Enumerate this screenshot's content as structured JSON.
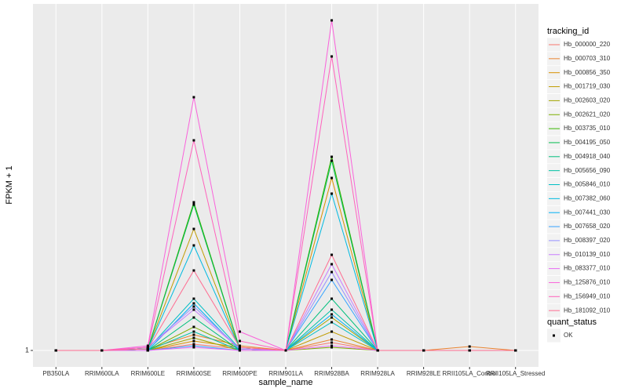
{
  "chart_data": {
    "type": "line",
    "xlabel": "sample_name",
    "ylabel": "FPKM + 1",
    "categories": [
      "PB350LA",
      "RRIM600LA",
      "RRIM600LE",
      "RRIM600SE",
      "RRIM600PE",
      "RRIM901LA",
      "RRIM928BA",
      "RRIM928LA",
      "RRIM928LE",
      "RRII105LA_Control",
      "RRII105LA_Stressed"
    ],
    "ylim": [
      -0.05,
      23.1
    ],
    "yticks": [
      1
    ],
    "grid": true,
    "legend_title": "tracking_id",
    "point_legend_title": "quant_status",
    "point_legend_label": "OK",
    "point_color": "#000000",
    "series": [
      {
        "name": "Hb_000000_220",
        "color": "#F8766D",
        "values": [
          1,
          1,
          1,
          1.4,
          1.1,
          1,
          1.5,
          1,
          1,
          1,
          1
        ]
      },
      {
        "name": "Hb_000703_310",
        "color": "#EA8331",
        "values": [
          1,
          1,
          1.1,
          2.0,
          1.3,
          1,
          1.7,
          1,
          1,
          1.25,
          1
        ]
      },
      {
        "name": "Hb_000856_350",
        "color": "#D89000",
        "values": [
          1,
          1,
          1,
          1.6,
          1.2,
          1,
          12.0,
          1,
          1,
          1,
          1
        ]
      },
      {
        "name": "Hb_001719_030",
        "color": "#C09B00",
        "values": [
          1,
          1,
          1.1,
          8.75,
          1.1,
          1,
          2.2,
          1,
          1,
          1,
          1
        ]
      },
      {
        "name": "Hb_002603_020",
        "color": "#A3A500",
        "values": [
          1,
          1,
          1,
          1.8,
          1,
          1,
          3.1,
          1,
          1,
          1,
          1
        ]
      },
      {
        "name": "Hb_002621_020",
        "color": "#7CAE00",
        "values": [
          1,
          1,
          1,
          2.5,
          1.1,
          1,
          1.2,
          1,
          1,
          1,
          1
        ]
      },
      {
        "name": "Hb_003735_010",
        "color": "#39B600",
        "values": [
          1,
          1,
          1.1,
          10.45,
          1.1,
          1,
          13.35,
          1,
          1,
          1,
          1
        ]
      },
      {
        "name": "Hb_004195_050",
        "color": "#00BB4E",
        "values": [
          1,
          1,
          1.1,
          10.3,
          1.1,
          1,
          13.1,
          1,
          1,
          1,
          1
        ]
      },
      {
        "name": "Hb_004918_040",
        "color": "#00BF7D",
        "values": [
          1,
          1,
          1,
          3.1,
          1,
          1,
          4.3,
          1,
          1,
          1,
          1
        ]
      },
      {
        "name": "Hb_005656_090",
        "color": "#00C1A3",
        "values": [
          1,
          1,
          1,
          2.2,
          1,
          1,
          3.6,
          1,
          1,
          1,
          1
        ]
      },
      {
        "name": "Hb_005846_010",
        "color": "#00BFC4",
        "values": [
          1,
          1,
          1.1,
          4.3,
          1.1,
          1,
          2.8,
          1,
          1,
          1,
          1
        ]
      },
      {
        "name": "Hb_007382_060",
        "color": "#00BAE0",
        "values": [
          1,
          1,
          1.1,
          7.7,
          1.1,
          1,
          11.0,
          1,
          1,
          1,
          1
        ]
      },
      {
        "name": "Hb_007441_030",
        "color": "#00B0F6",
        "values": [
          1,
          1,
          1,
          4.0,
          1,
          1,
          3.3,
          1,
          1,
          1,
          1
        ]
      },
      {
        "name": "Hb_007658_020",
        "color": "#35A2FF",
        "values": [
          1,
          1,
          1,
          1.3,
          1,
          1,
          5.5,
          1,
          1,
          1,
          1
        ]
      },
      {
        "name": "Hb_008397_020",
        "color": "#9590FF",
        "values": [
          1,
          1,
          1.2,
          3.8,
          1.1,
          1,
          6.0,
          1,
          1,
          1,
          1
        ]
      },
      {
        "name": "Hb_010139_010",
        "color": "#C77CFF",
        "values": [
          1,
          1,
          1.2,
          3.6,
          1.1,
          1,
          6.5,
          1,
          1,
          1,
          1
        ]
      },
      {
        "name": "Hb_083377_010",
        "color": "#E76BF3",
        "values": [
          1,
          1,
          1,
          1.2,
          1,
          1,
          1.3,
          1,
          1,
          1,
          1
        ]
      },
      {
        "name": "Hb_125876_010",
        "color": "#FA62DB",
        "values": [
          1,
          1,
          1.3,
          17.15,
          2.2,
          1,
          22.05,
          1,
          1,
          1,
          1
        ]
      },
      {
        "name": "Hb_156949_010",
        "color": "#FF62BC",
        "values": [
          1,
          1,
          1.2,
          14.4,
          1.6,
          1,
          19.75,
          1,
          1,
          1,
          1
        ]
      },
      {
        "name": "Hb_181092_010",
        "color": "#FF6C91",
        "values": [
          1,
          1,
          1.1,
          6.1,
          1.2,
          1,
          7.1,
          1,
          1,
          1,
          1
        ]
      }
    ]
  }
}
